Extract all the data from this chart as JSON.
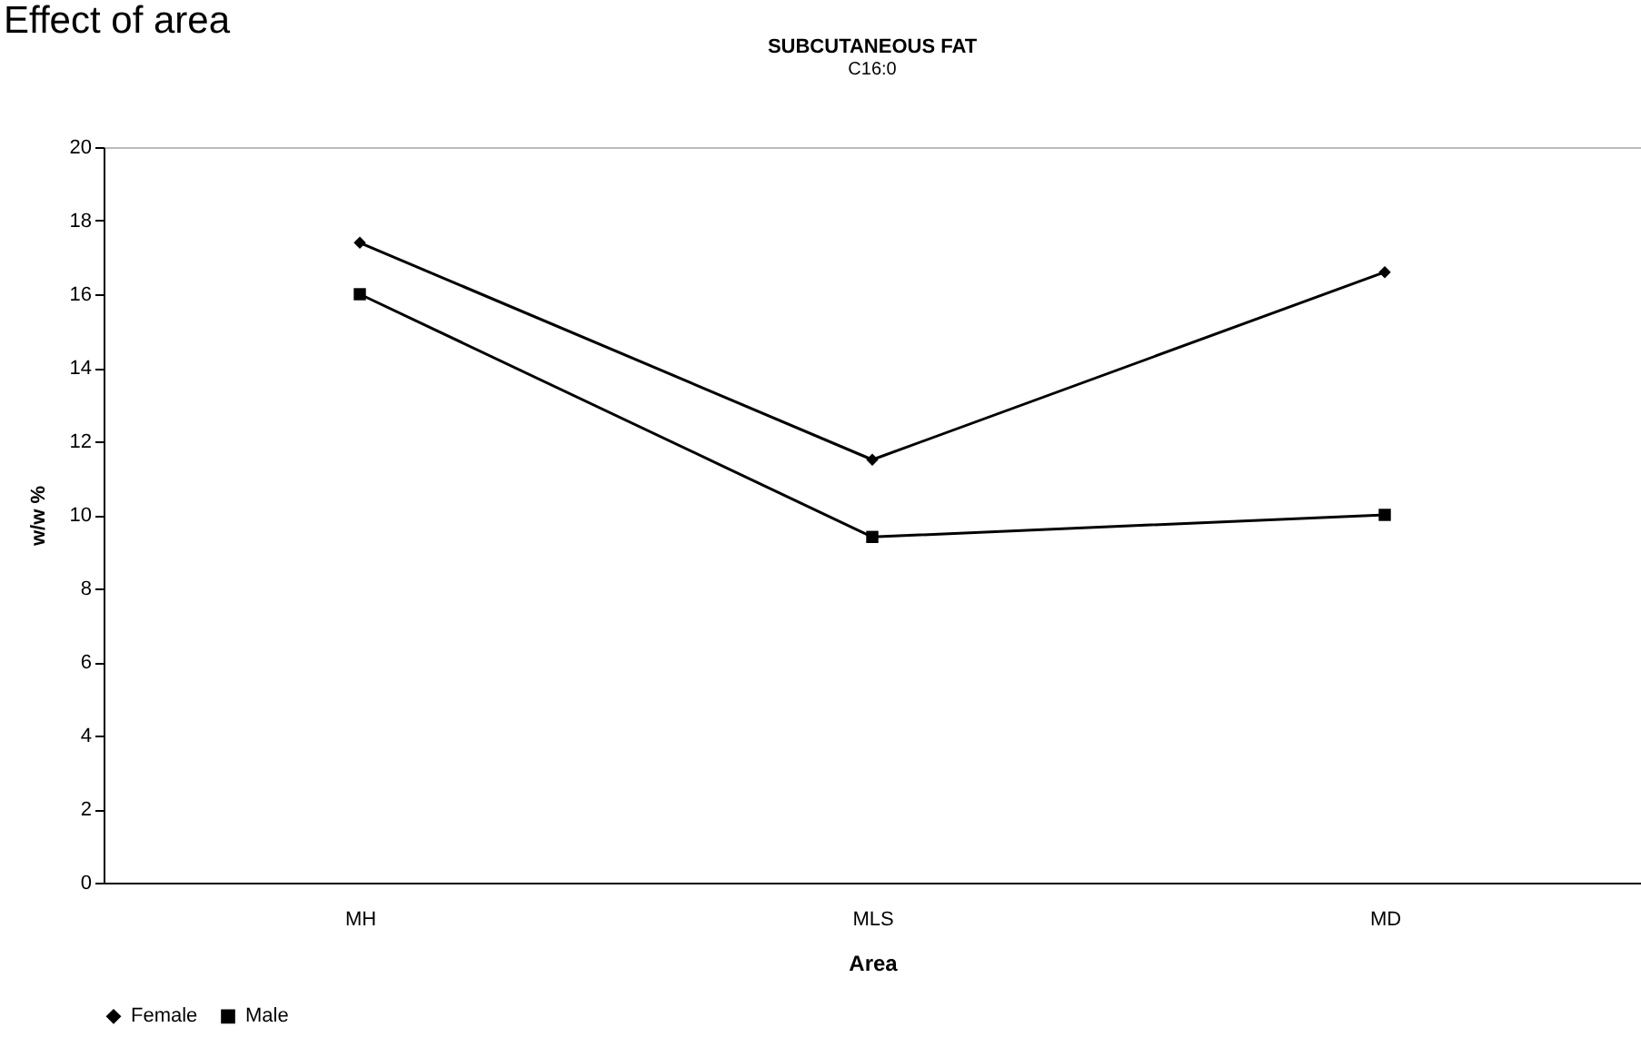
{
  "chart_data": {
    "type": "line",
    "title": "SUBCUTANEOUS FAT",
    "subtitle": "C16:0",
    "annotations": [
      "Effect of area"
    ],
    "xlabel": "Area",
    "ylabel": "w/w %",
    "categories": [
      "MH",
      "MLS",
      "MD"
    ],
    "series": [
      {
        "name": "Female",
        "color": "#000000",
        "marker": "diamond",
        "values": [
          17.4,
          11.5,
          16.6
        ]
      },
      {
        "name": "Male",
        "color": "#000000",
        "marker": "square",
        "values": [
          16.0,
          9.4,
          10.0
        ]
      }
    ],
    "ylim": [
      0,
      20
    ],
    "yticks": [
      0,
      2,
      4,
      6,
      8,
      10,
      12,
      14,
      16,
      18,
      20
    ],
    "grid": false,
    "legend": "bottom",
    "line_style": "solid"
  }
}
